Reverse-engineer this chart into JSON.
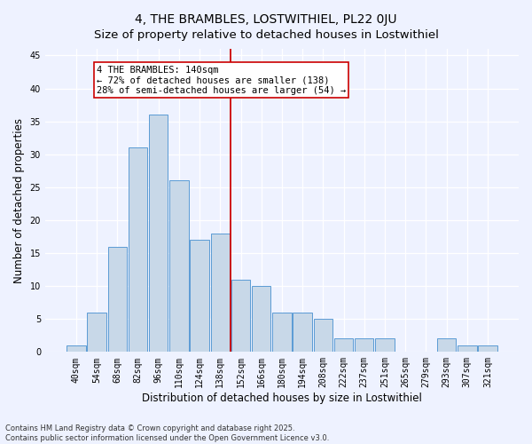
{
  "title": "4, THE BRAMBLES, LOSTWITHIEL, PL22 0JU",
  "subtitle": "Size of property relative to detached houses in Lostwithiel",
  "xlabel": "Distribution of detached houses by size in Lostwithiel",
  "ylabel": "Number of detached properties",
  "categories": [
    "40sqm",
    "54sqm",
    "68sqm",
    "82sqm",
    "96sqm",
    "110sqm",
    "124sqm",
    "138sqm",
    "152sqm",
    "166sqm",
    "180sqm",
    "194sqm",
    "208sqm",
    "222sqm",
    "237sqm",
    "251sqm",
    "265sqm",
    "279sqm",
    "293sqm",
    "307sqm",
    "321sqm"
  ],
  "values": [
    1,
    6,
    16,
    31,
    36,
    26,
    17,
    18,
    11,
    10,
    6,
    6,
    5,
    2,
    2,
    2,
    0,
    0,
    2,
    1,
    1
  ],
  "bar_color": "#c8d8e8",
  "bar_edge_color": "#5b9bd5",
  "vline_color": "#cc0000",
  "annotation_text": "4 THE BRAMBLES: 140sqm\n← 72% of detached houses are smaller (138)\n28% of semi-detached houses are larger (54) →",
  "annotation_box_color": "#ffffff",
  "annotation_box_edge": "#cc0000",
  "ylim": [
    0,
    46
  ],
  "yticks": [
    0,
    5,
    10,
    15,
    20,
    25,
    30,
    35,
    40,
    45
  ],
  "background_color": "#eef2ff",
  "grid_color": "#ffffff",
  "footer": "Contains HM Land Registry data © Crown copyright and database right 2025.\nContains public sector information licensed under the Open Government Licence v3.0.",
  "title_fontsize": 10,
  "xlabel_fontsize": 8.5,
  "ylabel_fontsize": 8.5,
  "tick_fontsize": 7,
  "annotation_fontsize": 7.5,
  "footer_fontsize": 6
}
